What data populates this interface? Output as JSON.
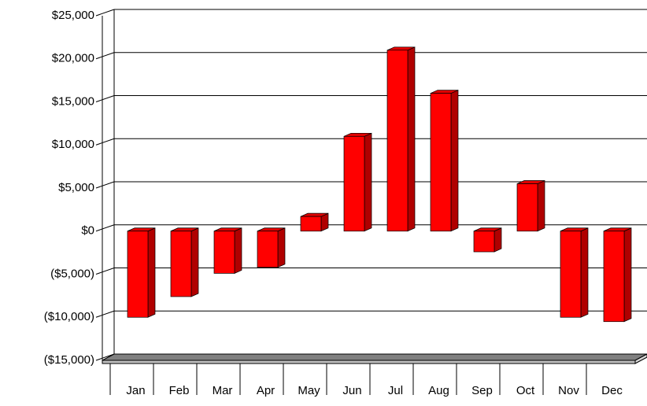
{
  "chart_data": {
    "type": "bar3d",
    "categories": [
      "Jan",
      "Feb",
      "Mar",
      "Apr",
      "May",
      "Jun",
      "Jul",
      "Aug",
      "Sep",
      "Oct",
      "Nov",
      "Dec"
    ],
    "values": [
      -10000,
      -7600,
      -4900,
      -4200,
      1700,
      11000,
      21000,
      16000,
      -2400,
      5500,
      -10000,
      -10500
    ],
    "color": "#ff0000",
    "ylim": [
      -15000,
      25000
    ],
    "yticks": [
      {
        "value": -15000,
        "label": "($15,000)"
      },
      {
        "value": -10000,
        "label": "($10,000)"
      },
      {
        "value": -5000,
        "label": "($5,000)"
      },
      {
        "value": 0,
        "label": "$0"
      },
      {
        "value": 5000,
        "label": "$5,000"
      },
      {
        "value": 10000,
        "label": "$10,000"
      },
      {
        "value": 15000,
        "label": "$15,000"
      },
      {
        "value": 20000,
        "label": "$20,000"
      },
      {
        "value": 25000,
        "label": "$25,000"
      }
    ],
    "negative_label_color": "#cc0000",
    "grid": true
  }
}
